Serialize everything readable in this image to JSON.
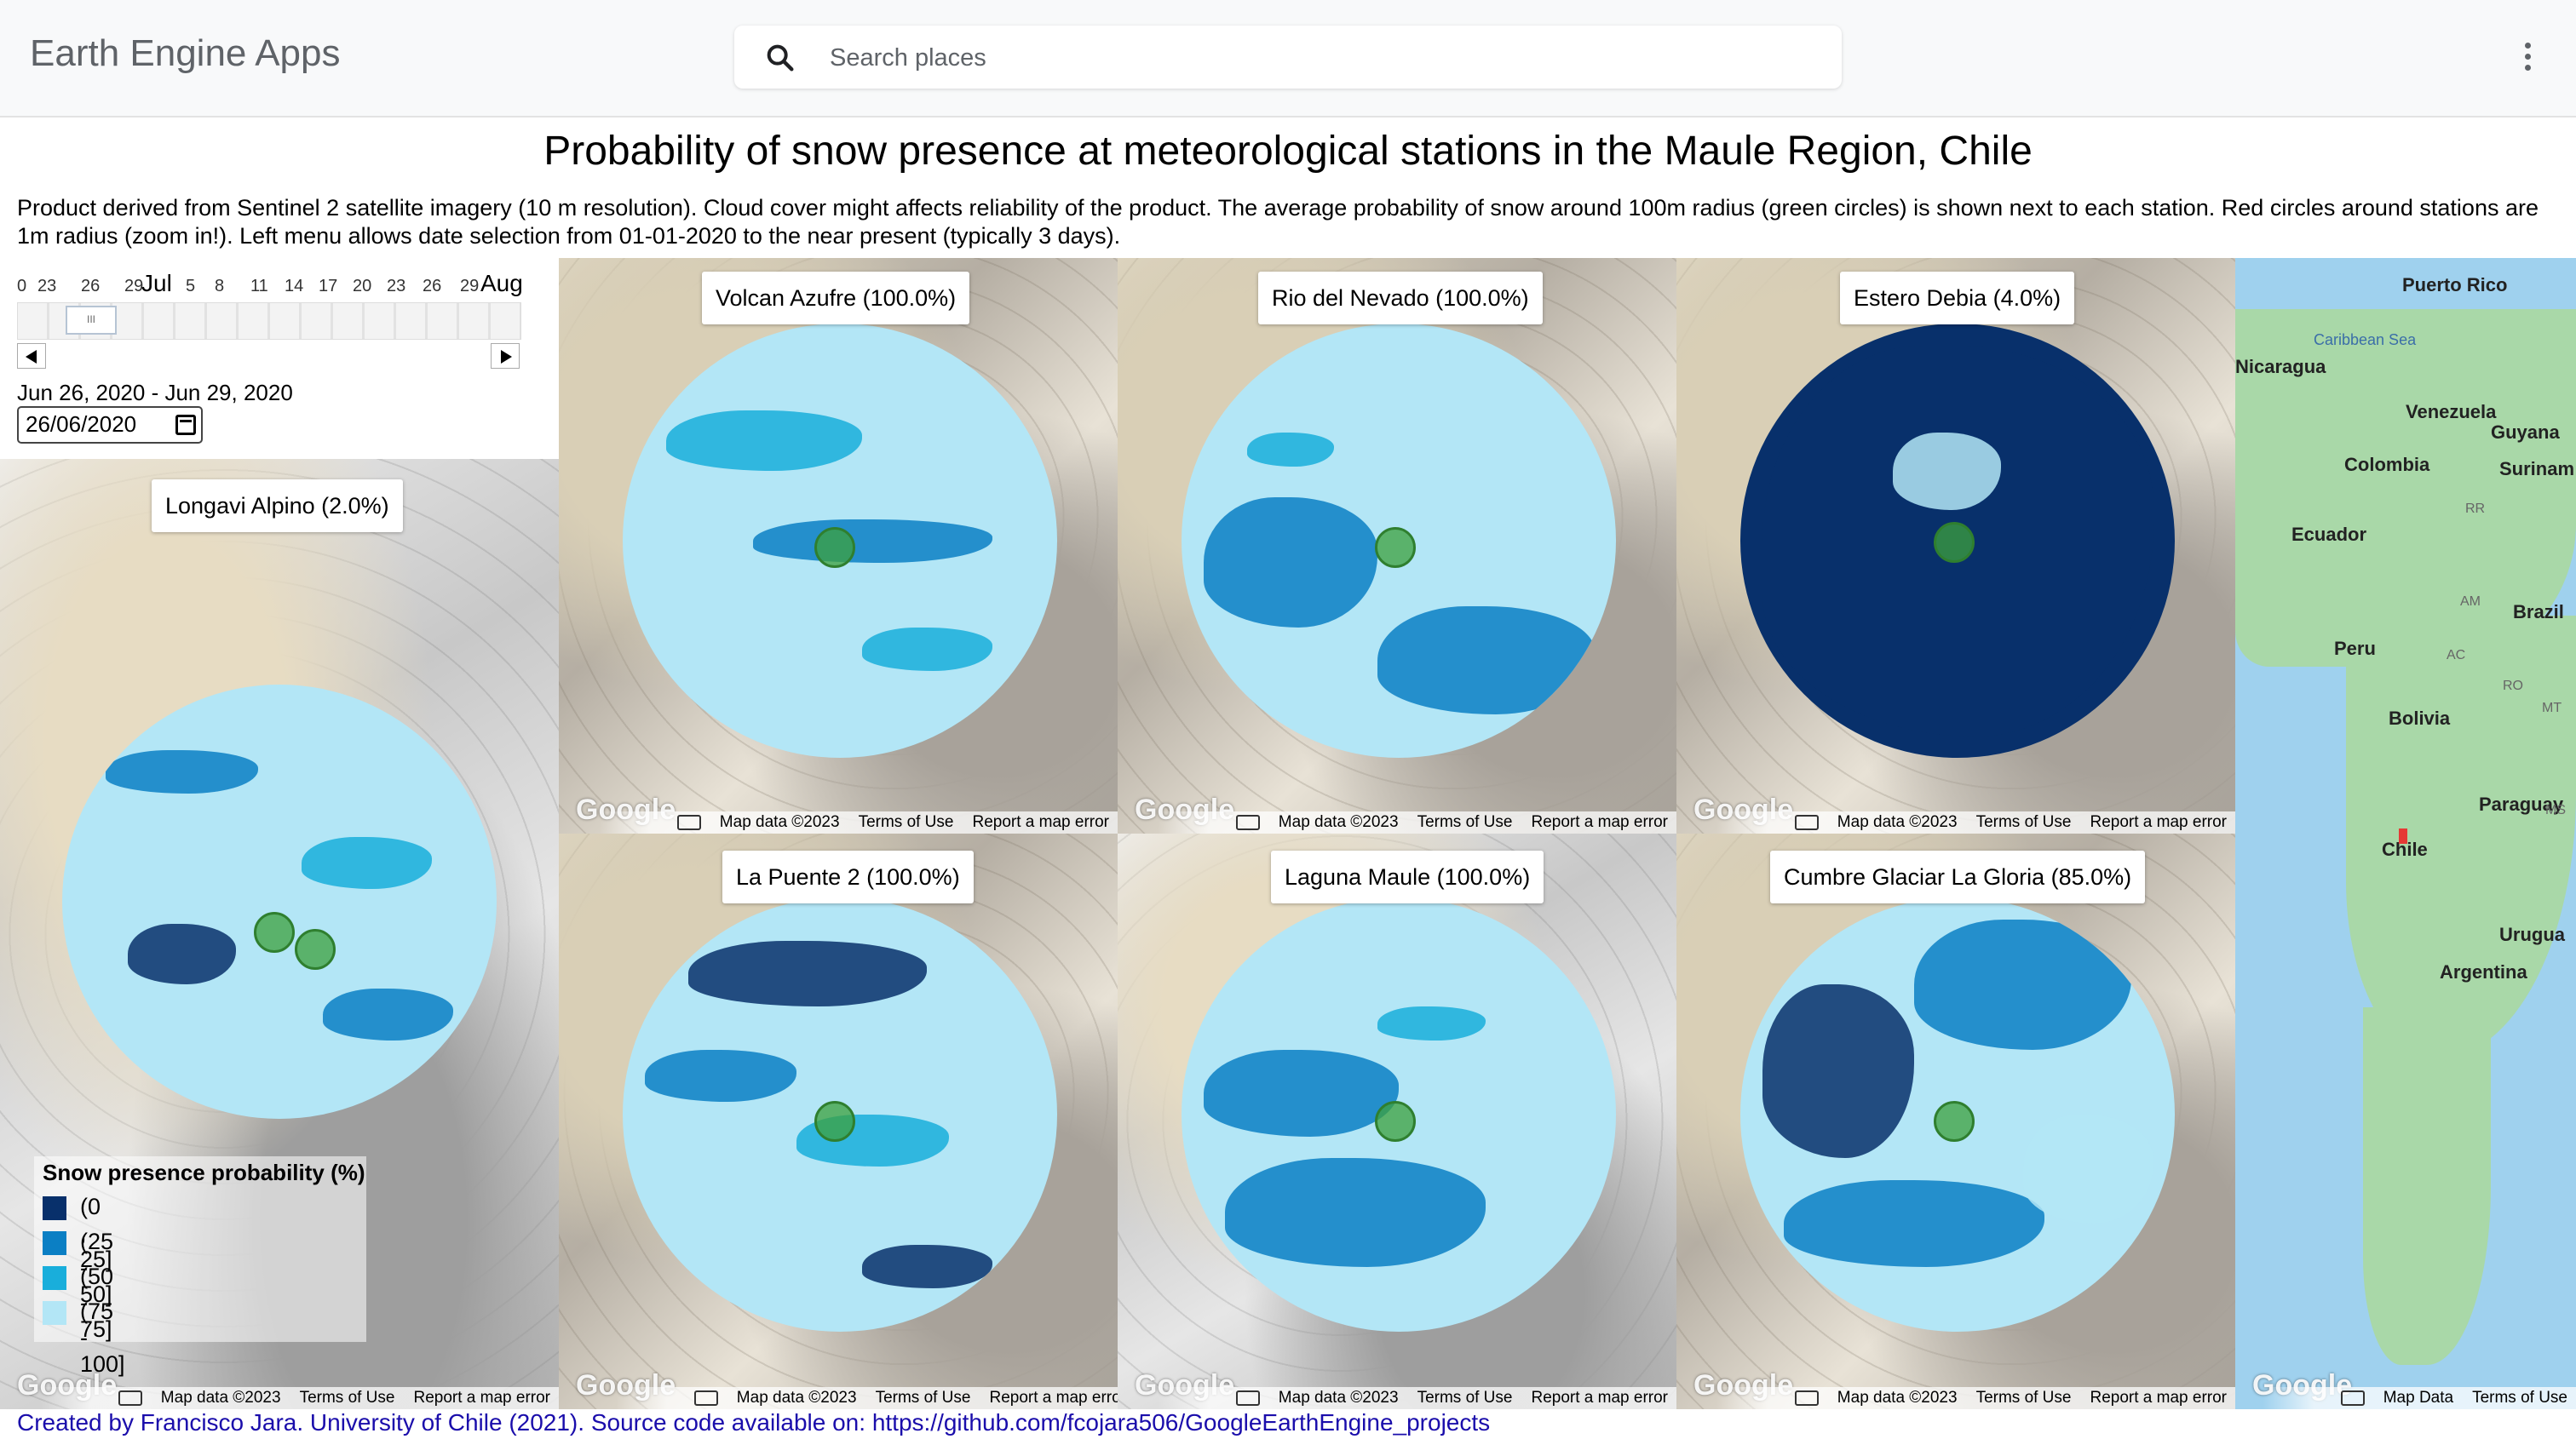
{
  "header": {
    "app_title": "Earth Engine Apps",
    "search_placeholder": "Search places"
  },
  "page": {
    "title": "Probability of snow presence at meteorological stations in the Maule Region, Chile",
    "description": "Product derived from Sentinel 2 satellite imagery (10 m resolution). Cloud cover might affects reliability of the product. The average probability of snow around 100m radius (green circles) is shown next to each station. Red circles around stations are 1m radius (zoom in!). Left menu allows date selection from 01-01-2020 to the near present (typically 3 days)."
  },
  "date_slider": {
    "ticks": [
      "0",
      "23",
      "26",
      "29",
      "Jul",
      "5",
      "8",
      "11",
      "14",
      "17",
      "20",
      "23",
      "26",
      "29",
      "Aug"
    ],
    "handle_glyph": "III",
    "range_text": "Jun 26, 2020 - Jun 29, 2020",
    "date_value": "26/06/2020"
  },
  "map_footer": {
    "map_data": "Map data ©2023",
    "terms": "Terms of Use",
    "report": "Report a map error",
    "google": "Google"
  },
  "overview_footer": {
    "map_data": "Map Data",
    "terms": "Terms of Use"
  },
  "stations": [
    {
      "label": "Longavi Alpino (2.0%)",
      "probability": 2.0
    },
    {
      "label": "Volcan Azufre (100.0%)",
      "probability": 100.0
    },
    {
      "label": "Rio del Nevado (100.0%)",
      "probability": 100.0
    },
    {
      "label": "Estero Debia (4.0%)",
      "probability": 4.0
    },
    {
      "label": "La Puente 2 (100.0%)",
      "probability": 100.0
    },
    {
      "label": "Laguna Maule (100.0%)",
      "probability": 100.0
    },
    {
      "label": "Cumbre Glaciar La Gloria (85.0%)",
      "probability": 85.0
    }
  ],
  "legend": {
    "title": "Snow presence probability (%)",
    "items": [
      {
        "label": "(0 , 25]",
        "color": "#08306b"
      },
      {
        "label": "(25 - 50]",
        "color": "#0b7fc4"
      },
      {
        "label": "(50 - 75]",
        "color": "#19aedb"
      },
      {
        "label": "(75 - 100]",
        "color": "#b3e6f6"
      }
    ]
  },
  "overview_map": {
    "labels": [
      "Puerto Rico",
      "Caribbean Sea",
      "Nicaragua",
      "Venezuela",
      "Guyana",
      "Colombia",
      "Surinam",
      "Ecuador",
      "Peru",
      "Brazil",
      "Bolivia",
      "Paraguay",
      "Chile",
      "Argentina",
      "Urugua"
    ],
    "small_labels": [
      "RR",
      "AM",
      "AC",
      "RO",
      "MT",
      "MS"
    ],
    "marker_color": "#e53935"
  },
  "credit": "Created by Francisco Jara. University of Chile (2021). Source code available on: https://github.com/fcojara506/GoogleEarthEngine_projects",
  "colors": {
    "station_green": "#3ca03c",
    "snow_light": "#b3e6f6",
    "snow_dark": "#08306b"
  }
}
